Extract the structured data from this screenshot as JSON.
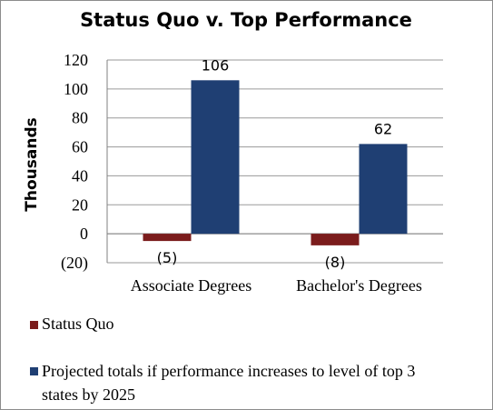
{
  "chart_data": {
    "type": "bar",
    "title": "Status Quo v. Top Performance",
    "ylabel": "Thousands",
    "xlabel": "",
    "ylim": [
      -20,
      120
    ],
    "yticks": [
      120,
      100,
      80,
      60,
      40,
      20,
      0,
      -20
    ],
    "ytick_labels": [
      "120",
      "100",
      "80",
      "60",
      "40",
      "20",
      "0",
      "(20)"
    ],
    "grid": true,
    "legend_position": "bottom",
    "categories": [
      "Associate Degrees",
      "Bachelor's Degrees"
    ],
    "series": [
      {
        "name": "Status Quo",
        "values": [
          -5,
          -8
        ],
        "labels": [
          "(5)",
          "(8)"
        ],
        "color": "#7b1c1c"
      },
      {
        "name": "Projected totals if performance increases to level of top 3 states by 2025",
        "values": [
          106,
          62
        ],
        "labels": [
          "106",
          "62"
        ],
        "color": "#1f3f73"
      }
    ]
  },
  "legend": {
    "line1": "Status Quo",
    "line2a": "Projected totals if performance increases to level of top 3",
    "line2b": "states by 2025"
  }
}
